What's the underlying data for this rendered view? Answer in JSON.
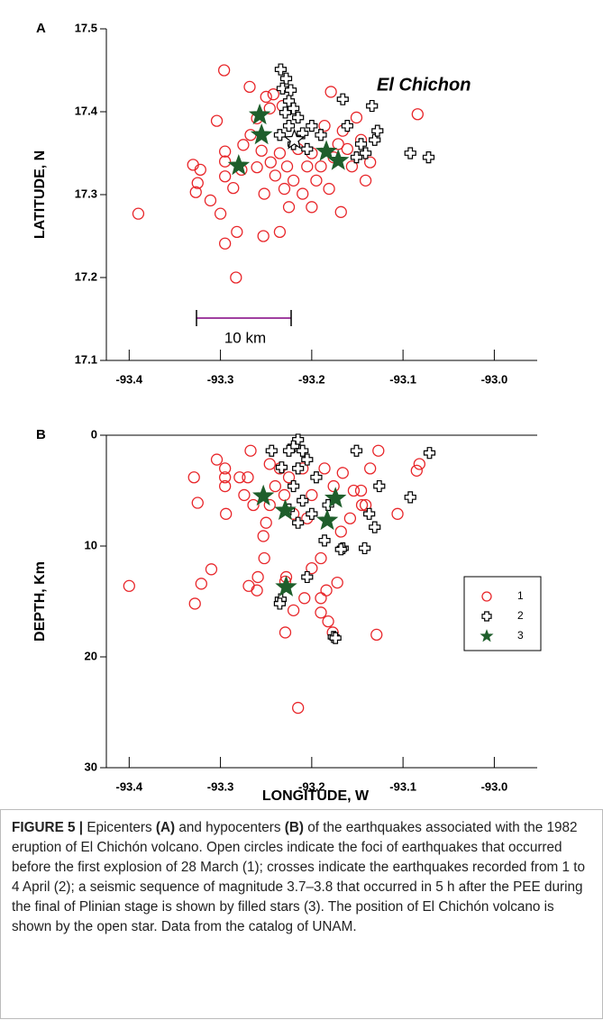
{
  "chart_data": [
    {
      "type": "scatter",
      "panel": "A",
      "ylabel": "LATITUDE, N",
      "annotation": "El Chichon",
      "scale_bar": "10 km",
      "xlim": [
        -93.425,
        -92.953
      ],
      "xticks": [
        -93.4,
        -93.3,
        -93.2,
        -93.1,
        {
          "value": -93,
          "label": "-93.0"
        }
      ],
      "ylim": [
        17.1,
        17.5
      ],
      "yticks": [
        17.1,
        17.2,
        17.3,
        17.4,
        17.5
      ],
      "series": [
        {
          "marker": "circle",
          "color": "#e8262a",
          "x": [
            -93.39,
            -93.296,
            -93.268,
            -93.304,
            -93.33,
            -93.325,
            -93.327,
            -93.322,
            -93.311,
            -93.3,
            -93.295,
            -93.295,
            -93.295,
            -93.295,
            -93.282,
            -93.283,
            -93.253,
            -93.235,
            -93.26,
            -93.286,
            -93.277,
            -93.275,
            -93.267,
            -93.26,
            -93.246,
            -93.25,
            -93.242,
            -93.255,
            -93.245,
            -93.24,
            -93.23,
            -93.22,
            -93.21,
            -93.205,
            -93.2,
            -93.195,
            -93.19,
            -93.176,
            -93.171,
            -93.166,
            -93.161,
            -93.151,
            -93.146,
            -93.136,
            -93.084,
            -93.179,
            -93.168,
            -93.225,
            -93.215,
            -93.227,
            -93.235,
            -93.232,
            -93.186,
            -93.156,
            -93.141,
            -93.181,
            -93.2,
            -93.252
          ],
          "values": [
            17.277,
            17.45,
            17.43,
            17.389,
            17.336,
            17.314,
            17.303,
            17.33,
            17.293,
            17.277,
            17.322,
            17.352,
            17.34,
            17.241,
            17.255,
            17.2,
            17.25,
            17.255,
            17.333,
            17.308,
            17.33,
            17.36,
            17.372,
            17.392,
            17.404,
            17.418,
            17.421,
            17.353,
            17.339,
            17.323,
            17.307,
            17.317,
            17.301,
            17.334,
            17.35,
            17.317,
            17.334,
            17.345,
            17.361,
            17.377,
            17.355,
            17.393,
            17.366,
            17.339,
            17.397,
            17.424,
            17.279,
            17.285,
            17.355,
            17.334,
            17.35,
            17.407,
            17.383,
            17.334,
            17.317,
            17.307,
            17.285,
            17.301
          ]
        },
        {
          "marker": "cross",
          "color": "#000000",
          "x": [
            -93.234,
            -93.228,
            -93.232,
            -93.223,
            -93.225,
            -93.22,
            -93.229,
            -93.215,
            -93.225,
            -93.21,
            -93.2,
            -93.19,
            -93.166,
            -93.134,
            -93.161,
            -93.146,
            -93.131,
            -93.128,
            -93.141,
            -93.092,
            -93.072,
            -93.151,
            -93.22,
            -93.205,
            -93.235
          ],
          "values": [
            17.451,
            17.44,
            17.428,
            17.426,
            17.413,
            17.404,
            17.399,
            17.393,
            17.383,
            17.374,
            17.383,
            17.372,
            17.415,
            17.407,
            17.383,
            17.361,
            17.366,
            17.377,
            17.35,
            17.35,
            17.345,
            17.345,
            17.361,
            17.355,
            17.372
          ]
        },
        {
          "marker": "star",
          "color": "#1e5e2b",
          "x": [
            -93.257,
            -93.255,
            -93.184,
            -93.171,
            -93.28
          ],
          "values": [
            17.396,
            17.372,
            17.352,
            17.341,
            17.335
          ]
        },
        {
          "marker": "star-open",
          "color": "#000000",
          "x": [
            -93.219
          ],
          "values": [
            17.366
          ]
        }
      ]
    },
    {
      "type": "scatter",
      "panel": "B",
      "ylabel": "DEPTH, Km",
      "xlabel": "LONGITUDE, W",
      "y_inverted": true,
      "legend": "center right",
      "xlim": [
        -93.425,
        -92.953
      ],
      "xticks": [
        -93.4,
        -93.3,
        -93.2,
        -93.1,
        {
          "value": -93,
          "label": "-93.0"
        }
      ],
      "ylim": [
        0,
        30
      ],
      "yticks": [
        0,
        10,
        20,
        30
      ],
      "series": [
        {
          "name": "1",
          "marker": "circle",
          "color": "#e8262a",
          "x": [
            -93.4,
            -93.328,
            -93.325,
            -93.329,
            -93.321,
            -93.31,
            -93.304,
            -93.295,
            -93.295,
            -93.294,
            -93.295,
            -93.267,
            -93.27,
            -93.269,
            -93.26,
            -93.259,
            -93.253,
            -93.252,
            -93.246,
            -93.24,
            -93.235,
            -93.23,
            -93.225,
            -93.22,
            -93.228,
            -93.22,
            -93.229,
            -93.215,
            -93.229,
            -93.19,
            -93.184,
            -93.182,
            -93.177,
            -93.19,
            -93.172,
            -93.168,
            -93.158,
            -93.145,
            -93.129,
            -93.127,
            -93.106,
            -93.082,
            -93.085,
            -93.186,
            -93.176,
            -93.166,
            -93.154,
            -93.146,
            -93.141,
            -93.136,
            -93.2,
            -93.205,
            -93.25,
            -93.264,
            -93.274,
            -93.279,
            -93.246,
            -93.21,
            -93.208,
            -93.2,
            -93.19
          ],
          "values": [
            13.6,
            15.2,
            6.1,
            3.8,
            13.4,
            12.1,
            2.2,
            3.8,
            4.6,
            7.1,
            3.0,
            1.4,
            3.8,
            13.6,
            14.0,
            12.8,
            9.1,
            11.1,
            6.3,
            4.6,
            3.0,
            5.4,
            3.8,
            7.1,
            12.8,
            15.8,
            13.2,
            24.6,
            17.8,
            14.7,
            14.0,
            16.8,
            17.8,
            16.0,
            13.3,
            8.7,
            7.5,
            6.3,
            18.0,
            1.4,
            7.1,
            2.6,
            3.2,
            3.0,
            4.6,
            3.4,
            5.0,
            5.0,
            6.3,
            3.0,
            5.4,
            7.5,
            7.9,
            6.3,
            5.4,
            3.8,
            2.6,
            3.0,
            14.7,
            12.0,
            11.1
          ]
        },
        {
          "name": "2",
          "marker": "cross",
          "color": "#000000",
          "x": [
            -93.215,
            -93.22,
            -93.225,
            -93.21,
            -93.205,
            -93.215,
            -93.22,
            -93.21,
            -93.225,
            -93.215,
            -93.244,
            -93.233,
            -93.195,
            -93.182,
            -93.151,
            -93.126,
            -93.131,
            -93.137,
            -93.142,
            -93.166,
            -93.168,
            -93.186,
            -93.205,
            -93.234,
            -93.235,
            -93.176,
            -93.174,
            -93.092,
            -93.071,
            -93.2
          ],
          "values": [
            0.4,
            1.0,
            1.4,
            1.4,
            2.2,
            3.0,
            4.6,
            5.9,
            6.7,
            7.9,
            1.4,
            2.9,
            3.8,
            6.3,
            1.4,
            4.6,
            8.3,
            7.1,
            10.2,
            10.2,
            10.3,
            9.5,
            12.8,
            14.8,
            15.2,
            18.2,
            18.3,
            5.6,
            1.6,
            7.1
          ]
        },
        {
          "name": "3",
          "marker": "star",
          "color": "#1e5e2b",
          "x": [
            -93.253,
            -93.229,
            -93.174,
            -93.183,
            -93.228
          ],
          "values": [
            5.5,
            6.8,
            5.7,
            7.7,
            13.7
          ]
        }
      ]
    }
  ],
  "caption": {
    "label": "FIGURE 5 |",
    "parts": [
      "Epicenters ",
      "(A)",
      " and hypocenters ",
      "(B)",
      " of the earthquakes associated with the 1982 eruption of El Chichón volcano. Open circles indicate the foci of earthquakes that occurred before the first explosion of 28 March (1); crosses indicate the earthquakes recorded from 1 to 4 April (2); a seismic sequence of magnitude 3.7–3.8 that occurred in 5 h after the PEE during the final of Plinian stage is shown by filled stars (3). The position of El Chichón volcano is shown by the open star. Data from the catalog of UNAM."
    ]
  }
}
